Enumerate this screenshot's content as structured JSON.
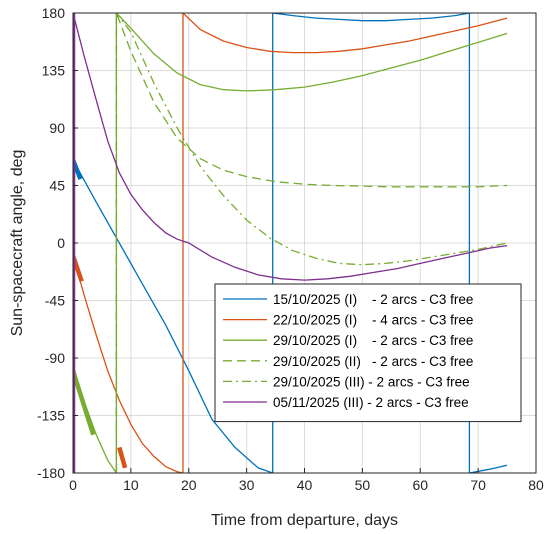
{
  "chart_data": {
    "type": "line",
    "title": "",
    "xlabel": "Time from departure, days",
    "ylabel": "Sun-spacecraft angle, deg",
    "xlim": [
      0,
      80
    ],
    "ylim": [
      -180,
      180
    ],
    "xticks": [
      0,
      10,
      20,
      30,
      40,
      50,
      60,
      70,
      80
    ],
    "yticks": [
      -180,
      -135,
      -90,
      -45,
      0,
      45,
      90,
      135,
      180
    ],
    "grid": true,
    "legend_position": "lower-right",
    "series": [
      {
        "name": "15/10/2025 (I)    - 2 arcs - C3 free",
        "color": "#0072BD",
        "dash": "solid",
        "x": [
          0,
          4,
          8,
          12,
          16,
          20,
          24,
          28,
          32,
          34.5,
          34.5,
          38,
          42,
          46,
          50,
          54,
          58,
          62,
          66,
          68.5,
          68.5,
          72,
          75
        ],
        "y": [
          65,
          32,
          0,
          -32,
          -64,
          -100,
          -138,
          -160,
          -176,
          -180,
          180,
          178,
          176,
          175,
          174,
          174,
          175,
          176,
          178,
          180,
          -180,
          -177,
          -174
        ]
      },
      {
        "name": "22/10/2025 (I)    - 4 arcs - C3 free",
        "color": "#D95319",
        "dash": "solid",
        "x": [
          0,
          2,
          4,
          6,
          8,
          10,
          12,
          14,
          16,
          18,
          19,
          19,
          22,
          26,
          30,
          34,
          38,
          42,
          46,
          50,
          54,
          58,
          62,
          66,
          70,
          75
        ],
        "y": [
          -10,
          -42,
          -72,
          -100,
          -123,
          -142,
          -157,
          -167,
          -175,
          -179,
          -180,
          180,
          167,
          158,
          153,
          150,
          149,
          149,
          150,
          152,
          155,
          158,
          162,
          166,
          170,
          176
        ]
      },
      {
        "name": "29/10/2025 (I)    - 2 arcs - C3 free",
        "color": "#77AC30",
        "dash": "solid",
        "x": [
          0,
          2,
          4,
          6,
          7.5,
          7.5,
          10,
          14,
          18,
          22,
          26,
          30,
          35,
          40,
          45,
          50,
          55,
          60,
          65,
          70,
          75
        ],
        "y": [
          -100,
          -125,
          -150,
          -170,
          -180,
          180,
          168,
          148,
          133,
          124,
          120,
          119,
          120,
          122,
          126,
          131,
          137,
          143,
          150,
          157,
          164
        ]
      },
      {
        "name": "29/10/2025 (II)   - 2 arcs - C3 free",
        "color": "#77AC30",
        "dash": "dashed",
        "x": [
          7.5,
          7.5,
          10,
          14,
          18,
          22,
          26,
          30,
          35,
          40,
          45,
          50,
          55,
          60,
          65,
          70,
          75
        ],
        "y": [
          -180,
          180,
          150,
          110,
          82,
          66,
          57,
          52,
          48,
          46,
          45,
          44.5,
          44,
          44,
          44,
          44,
          45
        ]
      },
      {
        "name": "29/10/2025 (III) - 2 arcs - C3 free",
        "color": "#77AC30",
        "dash": "dashdot",
        "x": [
          7.5,
          7.5,
          10,
          14,
          18,
          22,
          26,
          30,
          34,
          38,
          42,
          46,
          50,
          54,
          58,
          62,
          66,
          70,
          75
        ],
        "y": [
          -180,
          180,
          165,
          125,
          90,
          60,
          37,
          18,
          4,
          -6,
          -12,
          -16,
          -17,
          -16,
          -14,
          -11,
          -8,
          -5,
          0
        ]
      },
      {
        "name": "05/11/2025 (III) - 2 arcs - C3 free",
        "color": "#7E2F8E",
        "dash": "solid",
        "x": [
          0,
          2,
          4,
          6,
          8,
          10,
          12,
          14,
          16,
          18,
          20,
          24,
          28,
          32,
          36,
          40,
          44,
          48,
          52,
          56,
          60,
          64,
          68,
          72,
          75
        ],
        "y": [
          180,
          145,
          112,
          80,
          55,
          38,
          26,
          16,
          8,
          3,
          0,
          -11,
          -19,
          -25,
          -28,
          -29,
          -28,
          -26,
          -23,
          -20,
          -16,
          -12,
          -8,
          -4,
          -2
        ]
      }
    ],
    "thrust_arcs": [
      {
        "color": "#0072BD",
        "x": [
          0,
          1.3
        ],
        "y": [
          65,
          50
        ]
      },
      {
        "color": "#D95319",
        "x": [
          0,
          1.5
        ],
        "y": [
          -10,
          -30
        ]
      },
      {
        "color": "#D95319",
        "x": [
          8,
          9
        ],
        "y": [
          -160,
          -176
        ]
      },
      {
        "color": "#77AC30",
        "x": [
          0,
          3.5
        ],
        "y": [
          -100,
          -150
        ]
      },
      {
        "color": "#7E2F8E",
        "x": [
          0,
          0
        ],
        "y": [
          -180,
          180
        ]
      }
    ]
  }
}
